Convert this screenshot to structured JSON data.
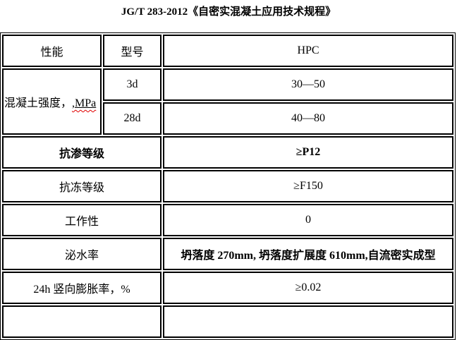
{
  "page": {
    "title": "JG/T 283-2012《自密实混凝土应用技术规程》"
  },
  "table": {
    "header": {
      "performance": "性能",
      "model": "型号",
      "type": "HPC"
    },
    "strength": {
      "label": "混凝土强度，",
      "unit": ",MPa",
      "ages": [
        {
          "age": "3d",
          "value": "30—50"
        },
        {
          "age": "28d",
          "value": "40—80"
        }
      ]
    },
    "rows": [
      {
        "label": "抗渗等级",
        "value": "≥P12"
      },
      {
        "label": "抗冻等级",
        "value": "≥F150"
      },
      {
        "label": "工作性",
        "value": "0"
      },
      {
        "label": "泌水率",
        "value": "坍落度 270mm, 坍落度扩展度 610mm,自流密实成型"
      },
      {
        "label": "24h 竖向膨胀率，%",
        "value": "≥0.02"
      }
    ]
  },
  "colors": {
    "background": "#ffffff",
    "text": "#000000",
    "border": "#000000",
    "spellcheck_underline": "#e00000"
  }
}
